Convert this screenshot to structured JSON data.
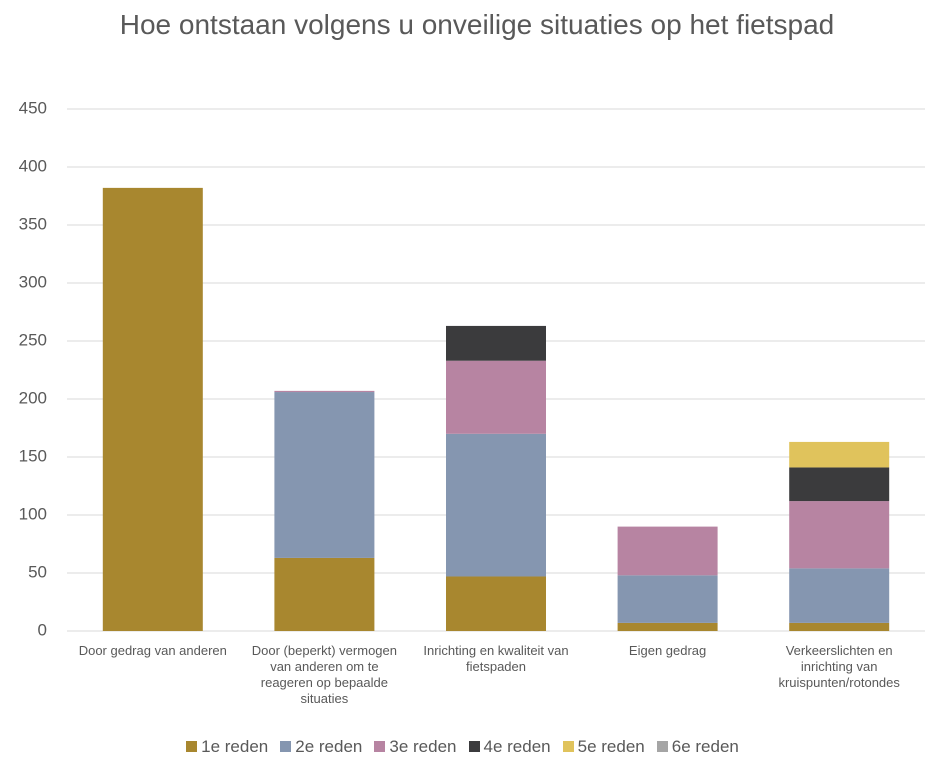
{
  "chart_data": {
    "type": "bar",
    "stacked": true,
    "title": "Hoe ontstaan volgens u onveilige situaties op het fietspad",
    "categories": [
      "Door gedrag van anderen",
      "Door (beperkt) vermogen van anderen om te reageren op bepaalde situaties",
      "Inrichting en kwaliteit van fietspaden",
      "Eigen gedrag",
      "Verkeerslichten en inrichting van kruispunten/rotondes"
    ],
    "series": [
      {
        "name": "1e reden",
        "color": "#a8872f",
        "values": [
          382,
          63,
          47,
          7,
          7
        ]
      },
      {
        "name": "2e reden",
        "color": "#8596b0",
        "values": [
          0,
          143,
          123,
          41,
          47
        ]
      },
      {
        "name": "3e reden",
        "color": "#b784a2",
        "values": [
          0,
          1,
          63,
          42,
          58
        ]
      },
      {
        "name": "4e reden",
        "color": "#3b3b3d",
        "values": [
          0,
          0,
          30,
          0,
          29
        ]
      },
      {
        "name": "5e reden",
        "color": "#e0c35c",
        "values": [
          0,
          0,
          0,
          0,
          22
        ]
      },
      {
        "name": "6e reden",
        "color": "#a5a5a5",
        "values": [
          0,
          0,
          0,
          0,
          0
        ]
      }
    ],
    "ylim": [
      0,
      450
    ],
    "yticks": [
      0,
      50,
      100,
      150,
      200,
      250,
      300,
      350,
      400,
      450
    ],
    "grid": true,
    "legend": "bottom"
  }
}
